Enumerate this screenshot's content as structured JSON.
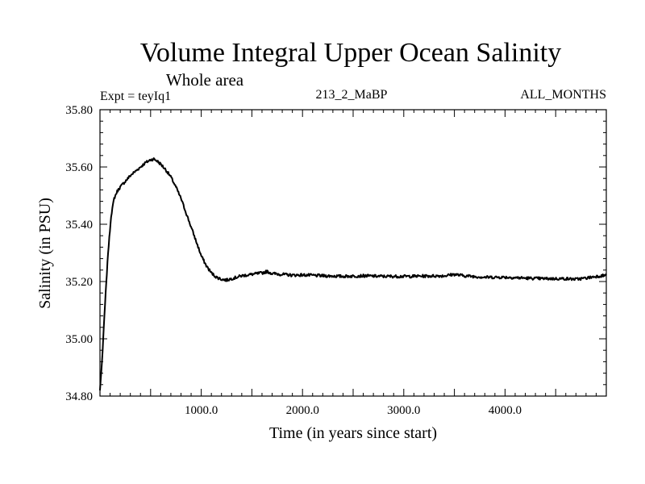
{
  "chart_data": {
    "type": "line",
    "title": "Volume Integral Upper Ocean Salinity",
    "subtitle": "Whole area",
    "expt_label": "Expt = teyIq1",
    "run_label": "213_2_MaBP",
    "period_label": "ALL_MONTHS",
    "xlabel": "Time (in years since start)",
    "ylabel": "Salinity (in PSU)",
    "xlim": [
      0,
      5000
    ],
    "ylim": [
      34.8,
      35.8
    ],
    "xticks": [
      1000,
      2000,
      3000,
      4000
    ],
    "xtick_labels": [
      "1000.0",
      "2000.0",
      "3000.0",
      "4000.0"
    ],
    "yticks": [
      34.8,
      35.0,
      35.2,
      35.4,
      35.6,
      35.8
    ],
    "ytick_labels": [
      "34.80",
      "35.00",
      "35.20",
      "35.40",
      "35.60",
      "35.80"
    ],
    "grid": false,
    "line_color": "#000000",
    "series": [
      {
        "name": "salinity",
        "x": [
          0,
          20,
          50,
          80,
          110,
          140,
          170,
          200,
          250,
          300,
          350,
          400,
          450,
          500,
          530,
          560,
          600,
          650,
          700,
          750,
          800,
          850,
          900,
          950,
          1000,
          1050,
          1100,
          1150,
          1200,
          1250,
          1300,
          1400,
          1500,
          1600,
          1650,
          1700,
          1800,
          1900,
          2000,
          2200,
          2400,
          2600,
          2800,
          3000,
          3200,
          3400,
          3500,
          3600,
          3800,
          4000,
          4200,
          4400,
          4600,
          4700,
          4800,
          4900,
          5000
        ],
        "values": [
          34.82,
          34.92,
          35.12,
          35.3,
          35.43,
          35.49,
          35.515,
          35.53,
          35.55,
          35.57,
          35.585,
          35.6,
          35.615,
          35.625,
          35.628,
          35.622,
          35.61,
          35.59,
          35.565,
          35.53,
          35.49,
          35.44,
          35.39,
          35.34,
          35.29,
          35.255,
          35.23,
          35.215,
          35.208,
          35.205,
          35.21,
          35.22,
          35.225,
          35.23,
          35.235,
          35.228,
          35.225,
          35.222,
          35.223,
          35.22,
          35.218,
          35.22,
          35.218,
          35.218,
          35.219,
          35.22,
          35.225,
          35.22,
          35.215,
          35.215,
          35.212,
          35.21,
          35.21,
          35.208,
          35.212,
          35.218,
          35.222
        ]
      }
    ]
  }
}
